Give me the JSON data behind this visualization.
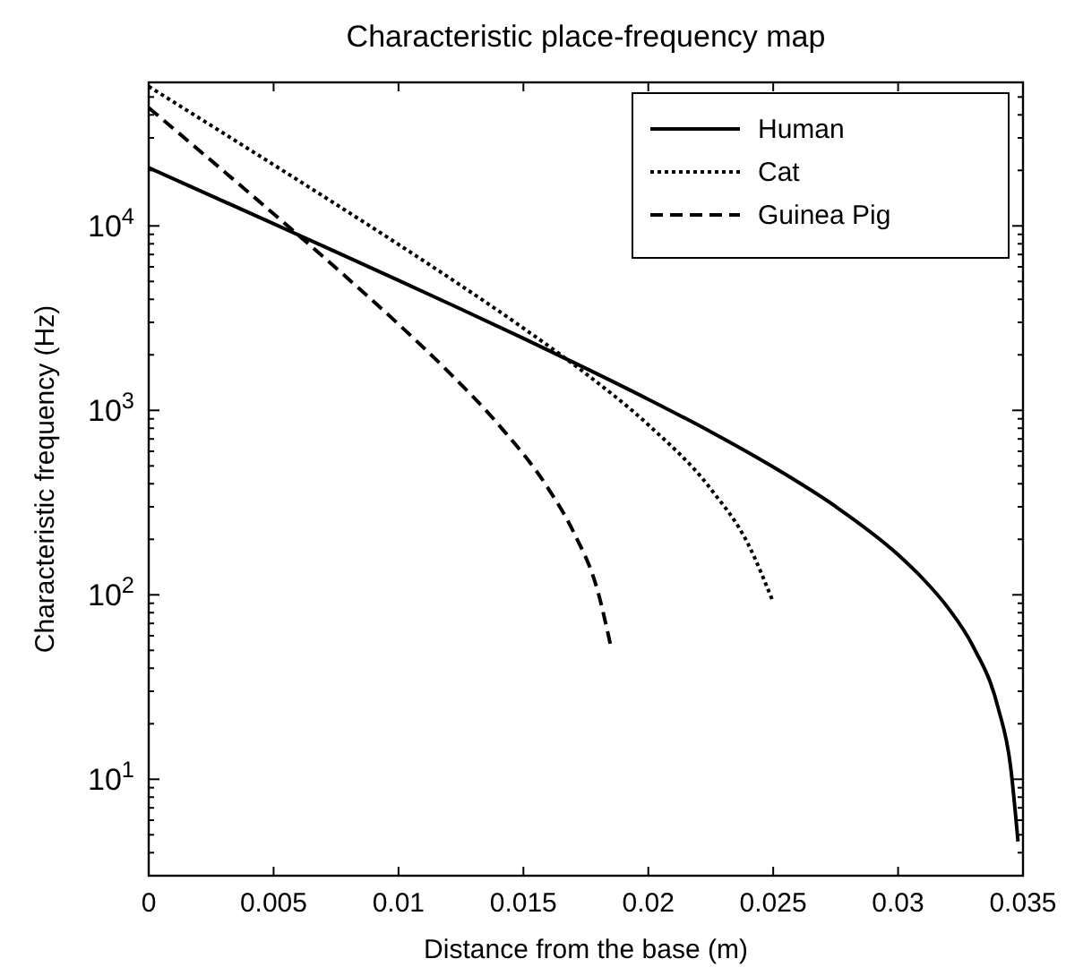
{
  "chart_data": {
    "type": "line",
    "title": "Characteristic place-frequency map",
    "xlabel": "Distance from the base (m)",
    "ylabel": "Characteristic frequency (Hz)",
    "log": "y",
    "legend": "top right",
    "grid": false,
    "xlim": [
      0,
      0.035
    ],
    "xticks": [
      0,
      0.005,
      0.01,
      0.015,
      0.02,
      0.025,
      0.03,
      0.035
    ],
    "ylim": [
      3,
      60000
    ],
    "yticks": [
      {
        "value": 3,
        "label": null
      },
      {
        "value": 4,
        "label": null
      },
      {
        "value": 5,
        "label": null
      },
      {
        "value": 6,
        "label": null
      },
      {
        "value": 7,
        "label": null
      },
      {
        "value": 8,
        "label": null
      },
      {
        "value": 9,
        "label": null
      },
      {
        "value": 10,
        "label": "10$^{1}$"
      },
      {
        "value": 20,
        "label": null
      },
      {
        "value": 30,
        "label": null
      },
      {
        "value": 40,
        "label": null
      },
      {
        "value": 50,
        "label": null
      },
      {
        "value": 60,
        "label": null
      },
      {
        "value": 70,
        "label": null
      },
      {
        "value": 80,
        "label": null
      },
      {
        "value": 90,
        "label": null
      },
      {
        "value": 100,
        "label": "10$^{2}$"
      },
      {
        "value": 200,
        "label": null
      },
      {
        "value": 300,
        "label": null
      },
      {
        "value": 400,
        "label": null
      },
      {
        "value": 500,
        "label": null
      },
      {
        "value": 600,
        "label": null
      },
      {
        "value": 700,
        "label": null
      },
      {
        "value": 800,
        "label": null
      },
      {
        "value": 900,
        "label": null
      },
      {
        "value": 1000,
        "label": "10$^{3}$"
      },
      {
        "value": 2000,
        "label": null
      },
      {
        "value": 3000,
        "label": null
      },
      {
        "value": 4000,
        "label": null
      },
      {
        "value": 5000,
        "label": null
      },
      {
        "value": 6000,
        "label": null
      },
      {
        "value": 7000,
        "label": null
      },
      {
        "value": 8000,
        "label": null
      },
      {
        "value": 9000,
        "label": null
      },
      {
        "value": 10000,
        "label": "10$^{4}$"
      },
      {
        "value": 20000,
        "label": null
      },
      {
        "value": 30000,
        "label": null
      },
      {
        "value": 40000,
        "label": null
      },
      {
        "value": 50000,
        "label": null
      },
      {
        "value": 60000,
        "label": null
      }
    ],
    "series": [
      {
        "name": "Human",
        "color": "#000000",
        "line_style": "solid",
        "x": [
          0,
          0.0025,
          0.005,
          0.0075,
          0.01,
          0.0125,
          0.015,
          0.0175,
          0.02,
          0.0225,
          0.025,
          0.0275,
          0.03,
          0.031,
          0.032,
          0.033,
          0.034,
          0.0345,
          0.0348
        ],
        "values": [
          20657,
          14577,
          10271,
          7223,
          5065,
          3538,
          2456,
          1690,
          1148,
          765,
          493,
          301,
          165,
          122,
          85,
          52.6,
          24.5,
          11.8,
          4.6
        ]
      },
      {
        "name": "Cat",
        "color": "#000000",
        "line_style": "dotted",
        "x": [
          0,
          0.0025,
          0.005,
          0.0075,
          0.01,
          0.0125,
          0.015,
          0.0175,
          0.02,
          0.0225,
          0.024,
          0.025
        ],
        "values": [
          57041,
          35030,
          21459,
          13092,
          7934,
          4751,
          2790,
          1581,
          835,
          375,
          188,
          91
        ]
      },
      {
        "name": "Guinea Pig",
        "color": "#000000",
        "line_style": "dashed",
        "x": [
          0,
          0.002,
          0.004,
          0.006,
          0.008,
          0.01,
          0.012,
          0.014,
          0.016,
          0.017,
          0.018,
          0.0185
        ],
        "values": [
          43765,
          25813,
          15193,
          8887,
          5148,
          2932,
          1617,
          838,
          376,
          220,
          102,
          52.5
        ]
      }
    ]
  }
}
